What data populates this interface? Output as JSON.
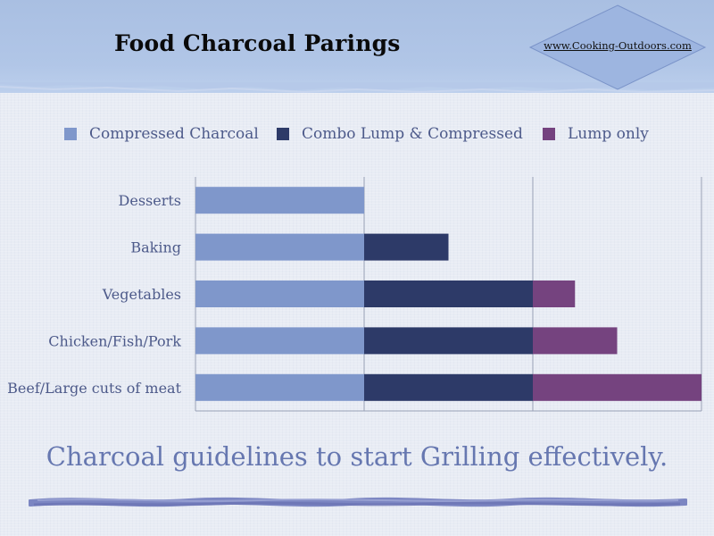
{
  "title": "Food Charcoal Parings",
  "badge": {
    "text": "www.Cooking-Outdoors.com"
  },
  "subtitle": "Charcoal guidelines to start Grilling effectively.",
  "colors": {
    "compressed": "#7f97cb",
    "combo": "#2d3a68",
    "lump": "#75437f",
    "axis": "#9aa2b6",
    "label": "#4d5a8a"
  },
  "legend": [
    {
      "label": "Compressed Charcoal",
      "color": "#7f97cb"
    },
    {
      "label": "Combo Lump & Compressed",
      "color": "#2d3a68"
    },
    {
      "label": "Lump only",
      "color": "#75437f"
    }
  ],
  "chart_data": {
    "type": "bar",
    "orientation": "horizontal",
    "stacked": true,
    "categories": [
      "Desserts",
      "Baking",
      "Vegetables",
      "Chicken/Fish/Pork",
      "Beef/Large cuts of meat"
    ],
    "series": [
      {
        "name": "Compressed Charcoal",
        "values": [
          1,
          1,
          1,
          1,
          1
        ]
      },
      {
        "name": "Combo Lump & Compressed",
        "values": [
          0,
          0.5,
          1,
          1,
          1
        ]
      },
      {
        "name": "Lump only",
        "values": [
          0,
          0,
          0.25,
          0.5,
          1
        ]
      }
    ],
    "xlim": [
      0,
      3
    ],
    "gridlines_x": [
      1,
      2,
      3
    ],
    "x_ticks_labeled": false,
    "legend_position": "top"
  }
}
